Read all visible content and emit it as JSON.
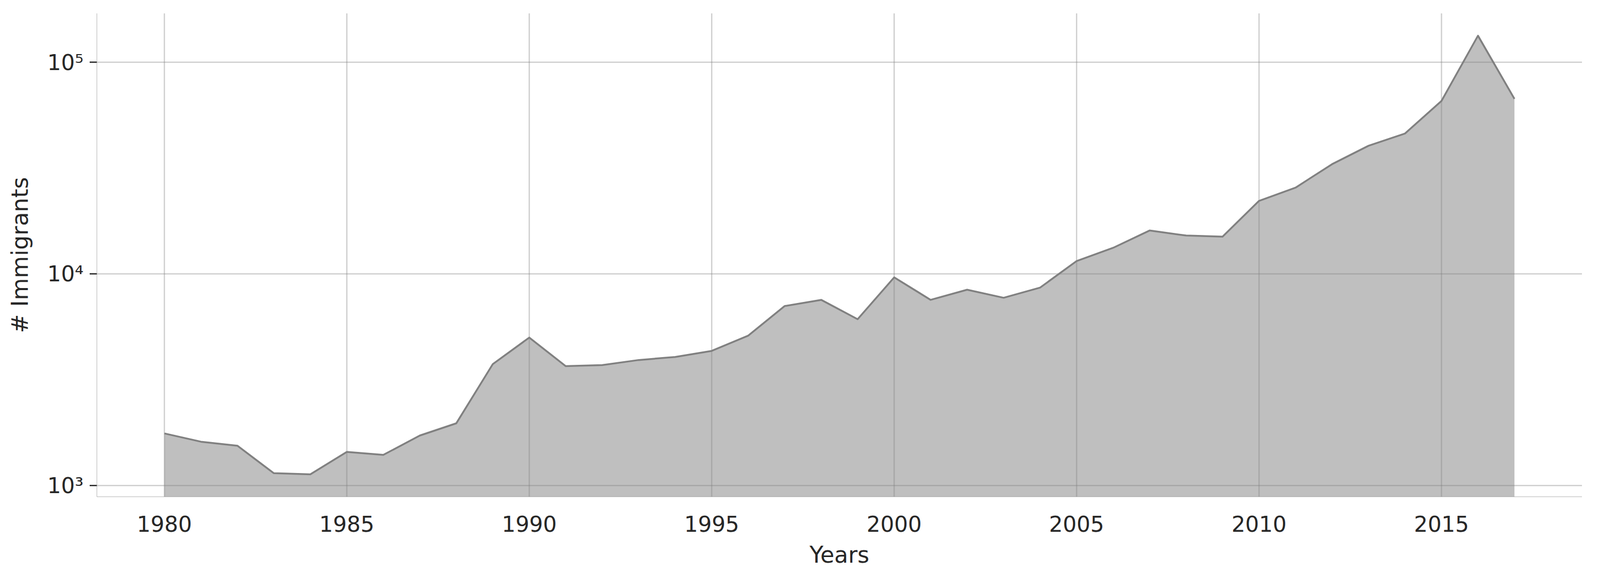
{
  "chart_data": {
    "type": "area",
    "x_label": "Years",
    "y_label": "# Immigrants",
    "x": [
      1980,
      1981,
      1982,
      1983,
      1984,
      1985,
      1986,
      1987,
      1988,
      1989,
      1990,
      1991,
      1992,
      1993,
      1994,
      1995,
      1996,
      1997,
      1998,
      1999,
      2000,
      2001,
      2002,
      2003,
      2004,
      2005,
      2006,
      2007,
      2008,
      2009,
      2010,
      2011,
      2012,
      2013,
      2014,
      2015,
      2016,
      2017
    ],
    "values": [
      1762,
      1611,
      1542,
      1143,
      1130,
      1442,
      1395,
      1722,
      1967,
      3744,
      5000,
      3664,
      3707,
      3917,
      4048,
      4325,
      5108,
      7047,
      7535,
      6106,
      9619,
      7535,
      8414,
      7709,
      8610,
      11490,
      13270,
      16025,
      15170,
      14990,
      22120,
      25540,
      32960,
      40270,
      46030,
      65620,
      133400,
      67100
    ],
    "color": "#808080",
    "log": "y",
    "grid": true,
    "xlim": [
      1978.15,
      2018.85
    ],
    "xticks": [
      1980,
      1985,
      1990,
      1995,
      2000,
      2005,
      2010,
      2015
    ],
    "ylim": [
      885,
      170000
    ],
    "yticks": [
      {
        "value": 1000,
        "label": "10³"
      },
      {
        "value": 10000,
        "label": "10⁴"
      },
      {
        "value": 100000,
        "label": "10⁵"
      }
    ]
  }
}
